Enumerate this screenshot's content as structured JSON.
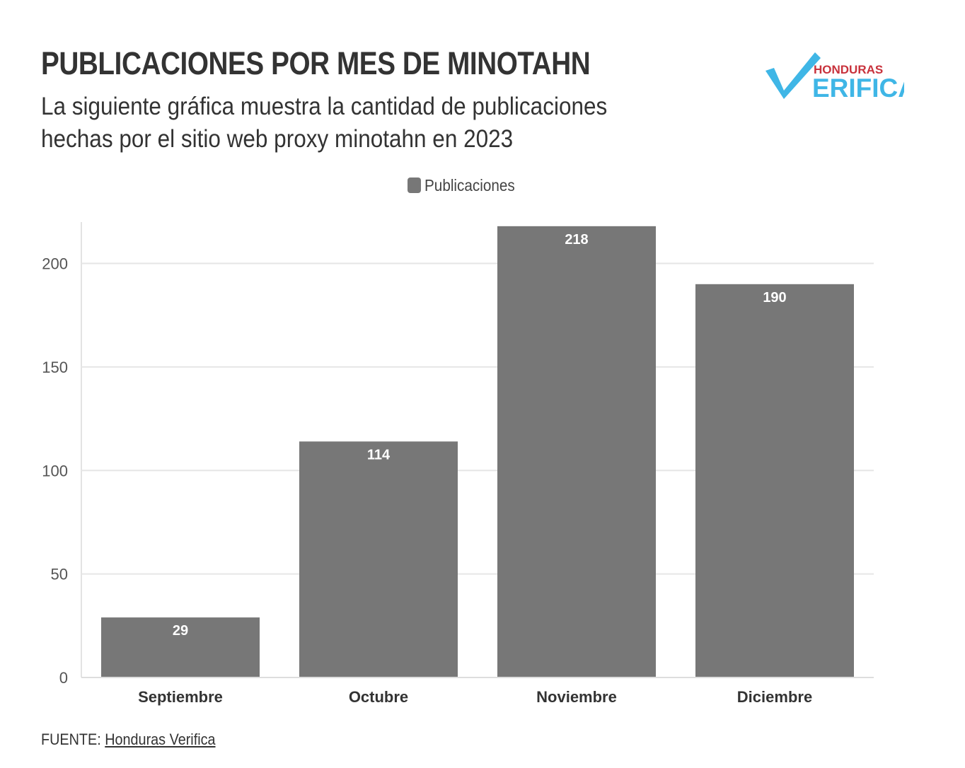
{
  "header": {
    "title": "PUBLICACIONES POR MES DE MINOTAHN",
    "subtitle_line1": "La siguiente gráfica muestra la cantidad de publicaciones",
    "subtitle_line2": "hechas por el sitio web proxy minotahn en 2023"
  },
  "logo": {
    "top_text": "HONDURAS",
    "bottom_text": "ERIFICA",
    "top_color": "#c8323c",
    "accent_color": "#3fb6e6"
  },
  "chart_data": {
    "type": "bar",
    "title": "PUBLICACIONES POR MES DE MINOTAHN",
    "categories": [
      "Septiembre",
      "Octubre",
      "Noviembre",
      "Diciembre"
    ],
    "series": [
      {
        "name": "Publicaciones",
        "values": [
          29,
          114,
          218,
          190
        ],
        "color": "#777777"
      }
    ],
    "ylim": [
      0,
      220
    ],
    "yticks": [
      0,
      50,
      100,
      150,
      200
    ],
    "grid": true,
    "legend_position": "top-center",
    "data_labels": true
  },
  "footer": {
    "source_prefix": "FUENTE:",
    "source_link": "Honduras Verifica"
  }
}
